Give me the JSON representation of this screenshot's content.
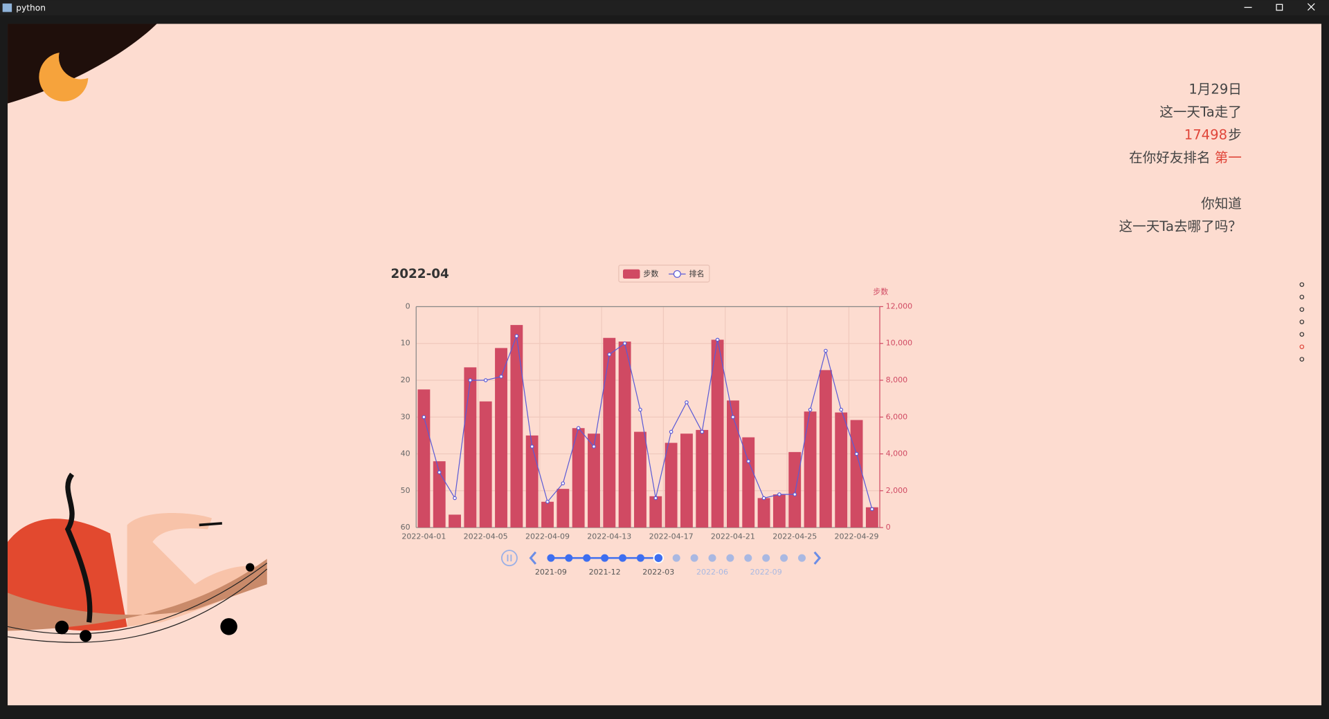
{
  "window": {
    "title": "python"
  },
  "panel": {
    "date": "1月29日",
    "walked": "这一天Ta走了",
    "steps_number": "17498",
    "steps_unit": "步",
    "rank_prefix": "在你好友排名",
    "rank": "第一",
    "question_1": "你知道",
    "question_2": "这一天Ta去哪了吗？"
  },
  "chart_data": {
    "type": "bar",
    "title": "2022-04",
    "categories": [
      "2022-04-01",
      null,
      null,
      null,
      "2022-04-05",
      null,
      null,
      null,
      "2022-04-09",
      null,
      null,
      null,
      "2022-04-13",
      null,
      null,
      null,
      "2022-04-17",
      null,
      null,
      null,
      "2022-04-21",
      null,
      null,
      null,
      "2022-04-25",
      null,
      null,
      null,
      "2022-04-29",
      null
    ],
    "series": [
      {
        "name": "步数",
        "type": "bar",
        "axis": "y2",
        "color": "#d04a63",
        "values": [
          7500,
          3600,
          700,
          8700,
          6850,
          9750,
          11000,
          5000,
          1400,
          2100,
          5400,
          5100,
          10300,
          10100,
          5200,
          1700,
          4600,
          5100,
          5300,
          10200,
          6900,
          4900,
          1600,
          1800,
          4100,
          6300,
          8550,
          6250,
          5840,
          1100
        ]
      },
      {
        "name": "排名",
        "type": "line",
        "axis": "y",
        "color": "#5b5bd6",
        "values": [
          30,
          45,
          52,
          20,
          20,
          19,
          8,
          38,
          53,
          48,
          33,
          38,
          13,
          10,
          28,
          52,
          34,
          26,
          34,
          9,
          30,
          42,
          52,
          51,
          51,
          28,
          12,
          28,
          40,
          55
        ]
      }
    ],
    "ylim": [
      0,
      60
    ],
    "yinverse": true,
    "yticks": [
      0,
      10,
      20,
      30,
      40,
      50,
      60
    ],
    "y2label": "步数",
    "y2lim": [
      0,
      12000
    ],
    "y2ticks": [
      0,
      {
        "value": 2000,
        "label": "2,000"
      },
      {
        "value": 4000,
        "label": "4,000"
      },
      {
        "value": 6000,
        "label": "6,000"
      },
      {
        "value": 8000,
        "label": "8,000"
      },
      {
        "value": 10000,
        "label": "10,000"
      },
      {
        "value": 12000,
        "label": "12,000"
      }
    ],
    "grid": true,
    "timeline": {
      "labels": [
        "2021-09",
        null,
        null,
        "2021-12",
        null,
        null,
        "2022-03",
        null,
        null,
        "2022-06",
        null,
        null,
        "2022-09",
        null,
        null
      ],
      "current": 6
    }
  }
}
